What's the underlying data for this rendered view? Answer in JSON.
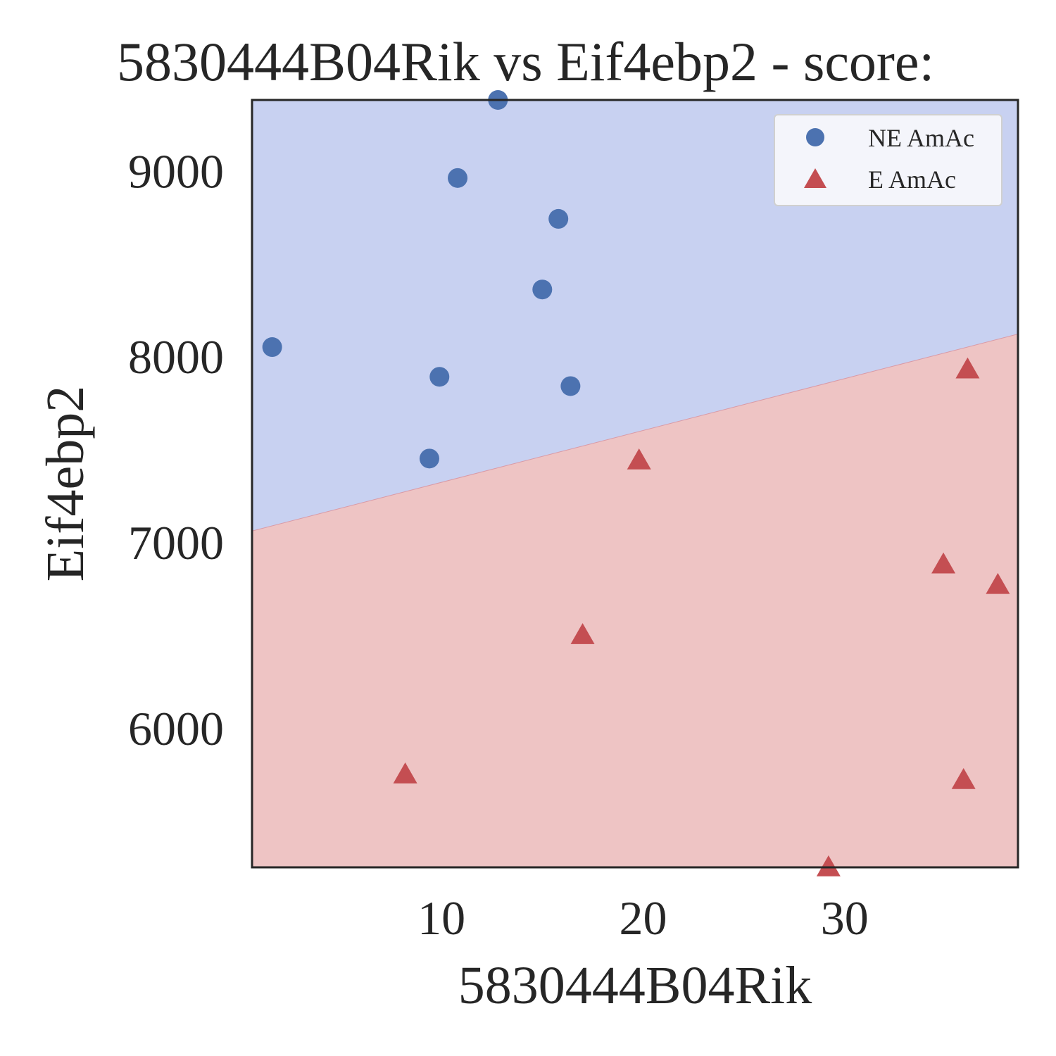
{
  "chart_data": {
    "type": "scatter",
    "title": "5830444B04Rik vs Eif4ebp2 - score:",
    "xlabel": "5830444B04Rik",
    "ylabel": "Eif4ebp2",
    "xlim": [
      0.6,
      38.6
    ],
    "ylim": [
      5250,
      9380
    ],
    "xticks": [
      10,
      20,
      30
    ],
    "yticks": [
      6000,
      7000,
      8000,
      9000
    ],
    "grid": false,
    "legend_position": "upper right",
    "decision_boundary": {
      "x": [
        0.6,
        38.6
      ],
      "y": [
        7060,
        8120
      ],
      "upper_region_color": "#c8d1f1",
      "lower_region_color": "#eec4c4"
    },
    "series": [
      {
        "name": "NE AmAc",
        "marker": "circle",
        "color": "#4c72b0",
        "x": [
          1.6,
          9.9,
          10.8,
          12.8,
          15.0,
          15.8,
          16.4,
          9.4
        ],
        "y": [
          8050,
          7890,
          8960,
          9380,
          8360,
          8740,
          7840,
          7450
        ]
      },
      {
        "name": "E AmAc",
        "marker": "triangle",
        "color": "#c44e52",
        "x": [
          8.2,
          17.0,
          19.8,
          29.2,
          34.9,
          35.9,
          36.1,
          37.6
        ],
        "y": [
          5750,
          6500,
          7440,
          5250,
          6880,
          5720,
          7930,
          6770
        ]
      }
    ]
  }
}
